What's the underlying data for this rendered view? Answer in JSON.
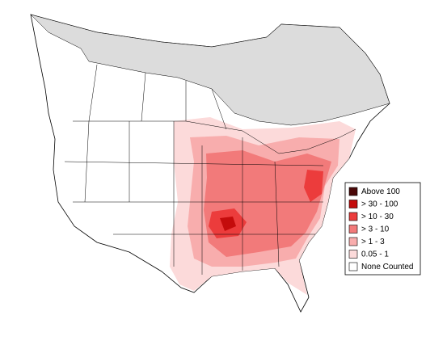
{
  "legend": {
    "items": [
      {
        "label": "Above 100",
        "color": "#4a0808"
      },
      {
        "label": "> 30 - 100",
        "color": "#c40c0c"
      },
      {
        "label": "> 10 - 30",
        "color": "#ec3c3c"
      },
      {
        "label": "> 3 - 10",
        "color": "#f27a7a"
      },
      {
        "label": "> 1 - 3",
        "color": "#f8adad"
      },
      {
        "label": "0.05 - 1",
        "color": "#fcdada"
      },
      {
        "label": "None Counted",
        "color": "#ffffff"
      }
    ]
  }
}
